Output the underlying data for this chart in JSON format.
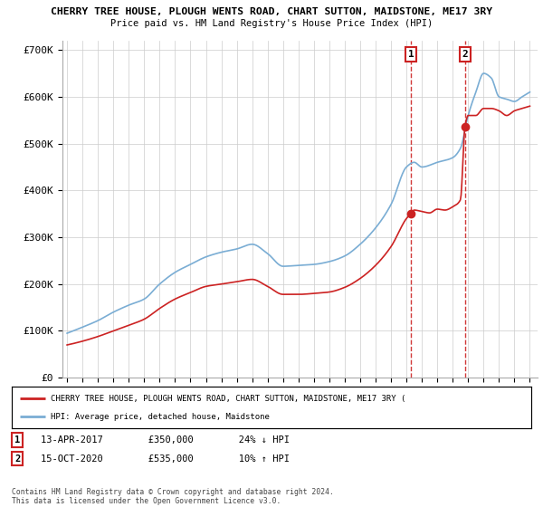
{
  "title1": "CHERRY TREE HOUSE, PLOUGH WENTS ROAD, CHART SUTTON, MAIDSTONE, ME17 3RY",
  "title2": "Price paid vs. HM Land Registry's House Price Index (HPI)",
  "ylim": [
    0,
    720000
  ],
  "yticks": [
    0,
    100000,
    200000,
    300000,
    400000,
    500000,
    600000,
    700000
  ],
  "ytick_labels": [
    "£0",
    "£100K",
    "£200K",
    "£300K",
    "£400K",
    "£500K",
    "£600K",
    "£700K"
  ],
  "hpi_color": "#7aadd4",
  "price_color": "#cc2222",
  "sale1_date": 2017.28,
  "sale1_price": 350000,
  "sale2_date": 2020.79,
  "sale2_price": 535000,
  "legend_line1": "CHERRY TREE HOUSE, PLOUGH WENTS ROAD, CHART SUTTON, MAIDSTONE, ME17 3RY (",
  "legend_line2": "HPI: Average price, detached house, Maidstone",
  "footer": "Contains HM Land Registry data © Crown copyright and database right 2024.\nThis data is licensed under the Open Government Licence v3.0.",
  "background_color": "#ffffff",
  "grid_color": "#cccccc"
}
